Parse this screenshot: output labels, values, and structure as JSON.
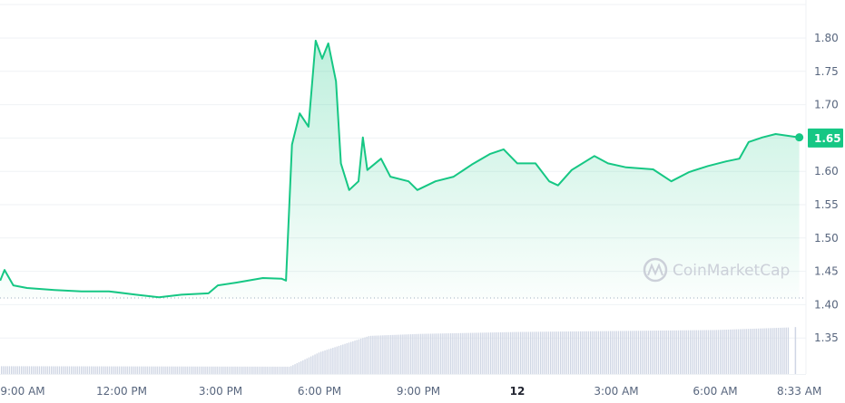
{
  "chart_data": {
    "type": "area",
    "title": "",
    "xlabel": "",
    "ylabel": "",
    "ylim": [
      1.3,
      1.85
    ],
    "y_ticks": [
      "1.80",
      "1.75",
      "1.70",
      "1.65",
      "1.60",
      "1.55",
      "1.50",
      "1.45",
      "1.40",
      "1.35"
    ],
    "x_ticks": [
      {
        "label": "9:00 AM",
        "t": "11 09:00"
      },
      {
        "label": "12:00 PM",
        "t": "11 12:00"
      },
      {
        "label": "3:00 PM",
        "t": "11 15:00"
      },
      {
        "label": "6:00 PM",
        "t": "11 18:00"
      },
      {
        "label": "9:00 PM",
        "t": "11 21:00"
      },
      {
        "label": "12",
        "t": "12 00:00",
        "bold": true
      },
      {
        "label": "3:00 AM",
        "t": "12 03:00"
      },
      {
        "label": "6:00 AM",
        "t": "12 06:00"
      },
      {
        "label": "8:33 AM",
        "t": "12 08:33"
      }
    ],
    "grid": true,
    "reference_line": 1.41,
    "current_price_label": "1.65",
    "colors": {
      "line": "#16c784",
      "fill": "#16c784",
      "badge": "#16c784",
      "volume": "#cfd6e4",
      "grid": "#eff2f5",
      "axis_text": "#58667e"
    },
    "watermark": "CoinMarketCap",
    "series": [
      {
        "points": [
          [
            "11 08:19",
            1.436
          ],
          [
            "11 08:27",
            1.452
          ],
          [
            "11 08:43",
            1.429
          ],
          [
            "11 09:08",
            1.425
          ],
          [
            "11 09:58",
            1.422
          ],
          [
            "11 10:47",
            1.42
          ],
          [
            "11 11:37",
            1.42
          ],
          [
            "11 12:26",
            1.415
          ],
          [
            "11 13:08",
            1.411
          ],
          [
            "11 13:49",
            1.415
          ],
          [
            "11 14:38",
            1.417
          ],
          [
            "11 14:55",
            1.429
          ],
          [
            "11 15:28",
            1.433
          ],
          [
            "11 16:17",
            1.44
          ],
          [
            "11 16:51",
            1.439
          ],
          [
            "11 16:59",
            1.436
          ],
          [
            "11 17:10",
            1.64
          ],
          [
            "11 17:24",
            1.687
          ],
          [
            "11 17:40",
            1.667
          ],
          [
            "11 17:53",
            1.796
          ],
          [
            "11 18:05",
            1.769
          ],
          [
            "11 18:16",
            1.792
          ],
          [
            "11 18:30",
            1.735
          ],
          [
            "11 18:39",
            1.612
          ],
          [
            "11 18:54",
            1.572
          ],
          [
            "11 19:11",
            1.585
          ],
          [
            "11 19:19",
            1.651
          ],
          [
            "11 19:27",
            1.602
          ],
          [
            "11 19:52",
            1.619
          ],
          [
            "11 20:09",
            1.592
          ],
          [
            "11 20:42",
            1.585
          ],
          [
            "11 20:58",
            1.572
          ],
          [
            "11 21:31",
            1.585
          ],
          [
            "11 22:04",
            1.592
          ],
          [
            "11 22:37",
            1.61
          ],
          [
            "11 23:10",
            1.626
          ],
          [
            "11 23:35",
            1.633
          ],
          [
            "12 00:00",
            1.612
          ],
          [
            "12 00:33",
            1.612
          ],
          [
            "12 00:58",
            1.585
          ],
          [
            "12 01:14",
            1.579
          ],
          [
            "12 01:39",
            1.602
          ],
          [
            "12 02:20",
            1.623
          ],
          [
            "12 02:45",
            1.612
          ],
          [
            "12 03:18",
            1.606
          ],
          [
            "12 04:07",
            1.603
          ],
          [
            "12 04:40",
            1.585
          ],
          [
            "12 05:13",
            1.599
          ],
          [
            "12 05:47",
            1.608
          ],
          [
            "12 06:20",
            1.615
          ],
          [
            "12 06:44",
            1.619
          ],
          [
            "12 07:01",
            1.644
          ],
          [
            "12 07:26",
            1.651
          ],
          [
            "12 07:50",
            1.656
          ],
          [
            "12 08:33",
            1.651
          ]
        ]
      }
    ],
    "volume_relative": [
      [
        "11 08:19",
        0.16
      ],
      [
        "11 17:05",
        0.15
      ],
      [
        "11 18:00",
        0.45
      ],
      [
        "11 19:30",
        0.78
      ],
      [
        "11 21:00",
        0.82
      ],
      [
        "12 00:00",
        0.86
      ],
      [
        "12 03:00",
        0.88
      ],
      [
        "12 06:00",
        0.9
      ],
      [
        "12 08:33",
        0.96
      ]
    ]
  }
}
